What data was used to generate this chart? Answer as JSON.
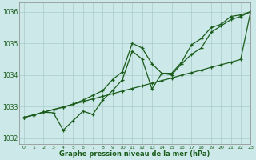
{
  "title": "Graphe pression niveau de la mer (hPa)",
  "background_color": "#cce8e8",
  "grid_color": "#aacccc",
  "line_color": "#1a5c1a",
  "xlim": [
    -0.5,
    23
  ],
  "ylim": [
    1031.8,
    1036.3
  ],
  "yticks": [
    1032,
    1033,
    1034,
    1035,
    1036
  ],
  "xticks": [
    0,
    1,
    2,
    3,
    4,
    5,
    6,
    7,
    8,
    9,
    10,
    11,
    12,
    13,
    14,
    15,
    16,
    17,
    18,
    19,
    20,
    21,
    22,
    23
  ],
  "hours": [
    0,
    1,
    2,
    3,
    4,
    5,
    6,
    7,
    8,
    9,
    10,
    11,
    12,
    13,
    14,
    15,
    16,
    17,
    18,
    19,
    20,
    21,
    22,
    23
  ],
  "line_straight": [
    1032.65,
    1032.73,
    1032.82,
    1032.9,
    1032.98,
    1033.07,
    1033.15,
    1033.24,
    1033.32,
    1033.4,
    1033.49,
    1033.57,
    1033.65,
    1033.74,
    1033.82,
    1033.9,
    1033.99,
    1034.07,
    1034.15,
    1034.24,
    1034.32,
    1034.4,
    1034.49,
    1036.0
  ],
  "line_upper": [
    1032.65,
    1032.73,
    1032.82,
    1032.9,
    1032.98,
    1033.07,
    1033.2,
    1033.35,
    1033.5,
    1033.85,
    1034.1,
    1035.0,
    1034.85,
    1034.35,
    1034.05,
    1034.05,
    1034.4,
    1034.95,
    1035.15,
    1035.5,
    1035.6,
    1035.85,
    1035.9,
    1036.0
  ],
  "line_lower": [
    1032.65,
    1032.73,
    1032.82,
    1032.8,
    1032.25,
    1032.55,
    1032.85,
    1032.75,
    1033.2,
    1033.5,
    1033.85,
    1034.75,
    1034.5,
    1033.55,
    1034.05,
    1034.0,
    1034.35,
    1034.65,
    1034.85,
    1035.35,
    1035.55,
    1035.75,
    1035.85,
    1036.0
  ],
  "figwidth": 3.2,
  "figheight": 2.0,
  "dpi": 100
}
